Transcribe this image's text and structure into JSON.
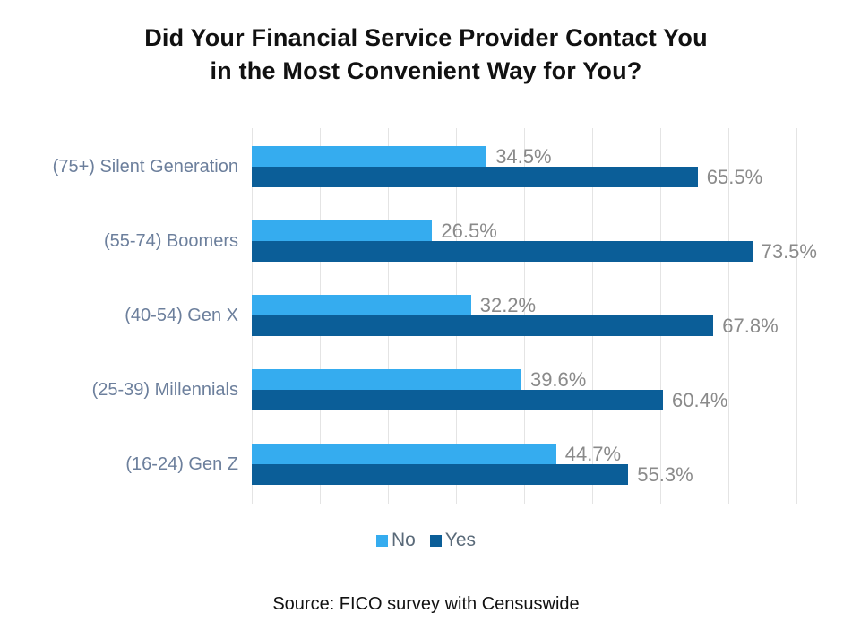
{
  "title": {
    "line1": "Did Your Financial Service Provider Contact You",
    "line2": "in the Most Convenient Way for You?"
  },
  "legend": {
    "items": [
      {
        "label": "No",
        "color": "#35acef"
      },
      {
        "label": "Yes",
        "color": "#0b5e98"
      }
    ]
  },
  "source": "Source: FICO survey with Censuswide",
  "chart_data": {
    "type": "bar",
    "orientation": "horizontal",
    "title": "Did Your Financial Service Provider Contact You in the Most Convenient Way for You?",
    "categories": [
      "(75+) Silent Generation",
      "(55-74) Boomers",
      "(40-54) Gen X",
      "(25-39) Millennials",
      "(16-24) Gen Z"
    ],
    "series": [
      {
        "name": "No",
        "color": "#35acef",
        "values": [
          34.5,
          26.5,
          32.2,
          39.6,
          44.7
        ]
      },
      {
        "name": "Yes",
        "color": "#0b5e98",
        "values": [
          65.5,
          73.5,
          67.8,
          60.4,
          55.3
        ]
      }
    ],
    "value_label_suffix": "%",
    "xlim": [
      0,
      80
    ],
    "gridline_step": 10,
    "grid": true,
    "legend_position": "bottom",
    "colors": {
      "category_label": "#6c7f9c",
      "value_label": "#8a8a8a",
      "gridline": "#e4e4e4",
      "legend_text": "#5a6a79",
      "title_text": "#111111"
    }
  }
}
